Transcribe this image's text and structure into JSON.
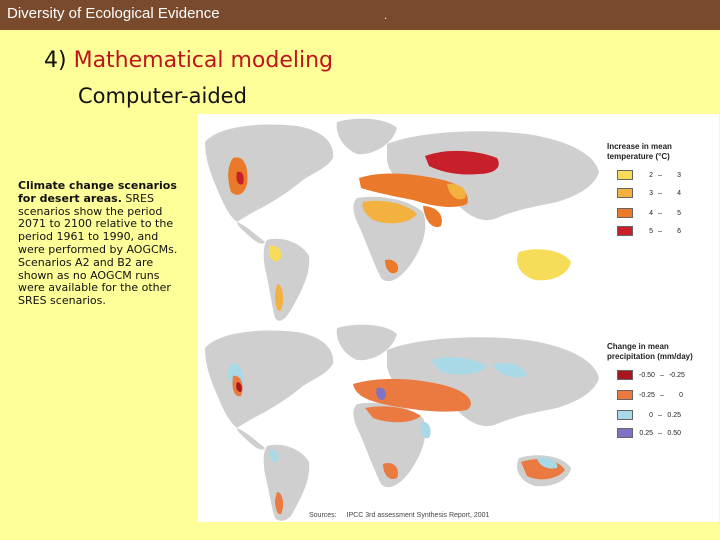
{
  "header": {
    "title": "Diversity of Ecological Evidence",
    "dot": "."
  },
  "heading": {
    "number": "4)",
    "label": "Mathematical modeling"
  },
  "subheading": "Computer-aided",
  "caption": {
    "bold": "Climate change scenarios for desert areas.",
    "body": " SRES scenarios show the period 2071 to 2100 relative to the period 1961 to 1990, and were performed by AOGCMs. Scenarios A2 and B2 are shown as no AOGCM runs were available for the other SRES scenarios."
  },
  "figure": {
    "temperature_legend": {
      "title_line1": "Increase in mean",
      "title_line2": "temperature (°C)",
      "items": [
        {
          "from": "2",
          "to": "3",
          "color": "#f7dc5a"
        },
        {
          "from": "3",
          "to": "4",
          "color": "#f3b13f"
        },
        {
          "from": "4",
          "to": "5",
          "color": "#ea7a2a"
        },
        {
          "from": "5",
          "to": "6",
          "color": "#c8202a"
        }
      ]
    },
    "precip_legend": {
      "title_line1": "Change in mean",
      "title_line2": "precipitation (mm/day)",
      "items": [
        {
          "from": "-0.50",
          "to": "-0.25",
          "color": "#a8161e"
        },
        {
          "from": "-0.25",
          "to": "0",
          "color": "#ea7a40"
        },
        {
          "from": "0",
          "to": "0.25",
          "color": "#a9d8e6"
        },
        {
          "from": "0.25",
          "to": "0.50",
          "color": "#7f73c6"
        }
      ]
    },
    "source_label": "Sources:",
    "source_text": "IPCC 3rd assessment Synthesis Report, 2001",
    "colors": {
      "land": "#cfcfcf",
      "ocean": "#ffffff"
    }
  }
}
